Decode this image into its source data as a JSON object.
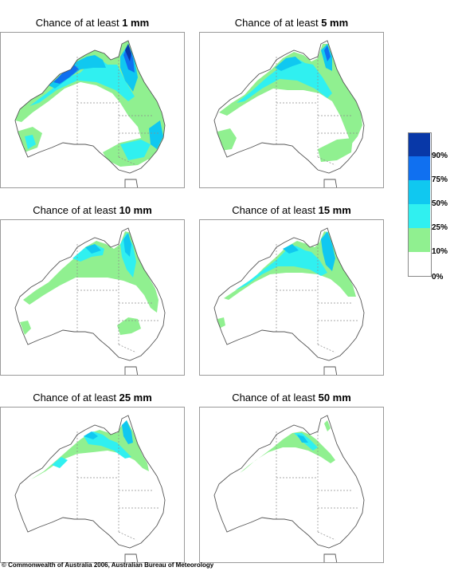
{
  "panels": [
    {
      "title_prefix": "Chance of at least",
      "amount": "1 mm"
    },
    {
      "title_prefix": "Chance of at least",
      "amount": "5 mm"
    },
    {
      "title_prefix": "Chance of at least",
      "amount": "10 mm"
    },
    {
      "title_prefix": "Chance of at least",
      "amount": "15 mm"
    },
    {
      "title_prefix": "Chance of at least",
      "amount": "25 mm"
    },
    {
      "title_prefix": "Chance of at least",
      "amount": "50 mm"
    }
  ],
  "legend": {
    "bins": [
      {
        "color": "#ffffff",
        "range": "0-10%"
      },
      {
        "color": "#90f090",
        "range": "10-25%"
      },
      {
        "color": "#30f0f0",
        "range": "25-50%"
      },
      {
        "color": "#10c8f0",
        "range": "50-75%"
      },
      {
        "color": "#1070f0",
        "range": "75-90%"
      },
      {
        "color": "#0838a8",
        "range": "90-100%"
      }
    ],
    "labels": [
      "90%",
      "75%",
      "50%",
      "25%",
      "10%",
      "0%"
    ]
  },
  "copyright": "© Commonwealth of Australia 2006, Australian Bureau of Meteorology"
}
